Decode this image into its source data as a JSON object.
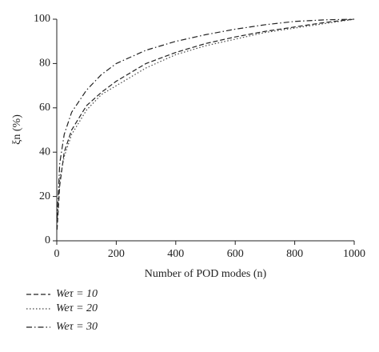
{
  "chart_data": {
    "type": "line",
    "x_label": "Number of POD modes (n)",
    "y_label": "ξn (%)",
    "x": [
      1,
      10,
      25,
      50,
      100,
      150,
      200,
      300,
      400,
      500,
      600,
      700,
      800,
      900,
      1000
    ],
    "series": [
      {
        "name": "Weτ = 10",
        "color": "#222222",
        "dash": "6,3",
        "values": [
          5,
          25,
          40,
          50,
          61,
          67,
          72,
          80,
          85,
          89,
          92,
          94.5,
          96.5,
          98.5,
          100
        ]
      },
      {
        "name": "Weτ = 20",
        "color": "#444444",
        "dash": "1.5,2.5",
        "values": [
          8,
          28,
          38,
          48,
          59,
          66,
          70,
          78,
          84,
          88,
          91,
          94,
          96,
          98,
          100
        ]
      },
      {
        "name": "Weτ = 30",
        "color": "#222222",
        "dash": "7,3,1.5,3",
        "values": [
          10,
          35,
          48,
          58,
          68,
          75,
          80,
          86,
          90,
          93,
          95.5,
          97.5,
          99,
          99.7,
          100
        ]
      }
    ],
    "xlim": [
      0,
      1000
    ],
    "xticks": [
      0,
      200,
      400,
      600,
      800,
      1000
    ],
    "ylim": [
      0,
      100
    ],
    "yticks": [
      0,
      20,
      40,
      60,
      80,
      100
    ]
  }
}
